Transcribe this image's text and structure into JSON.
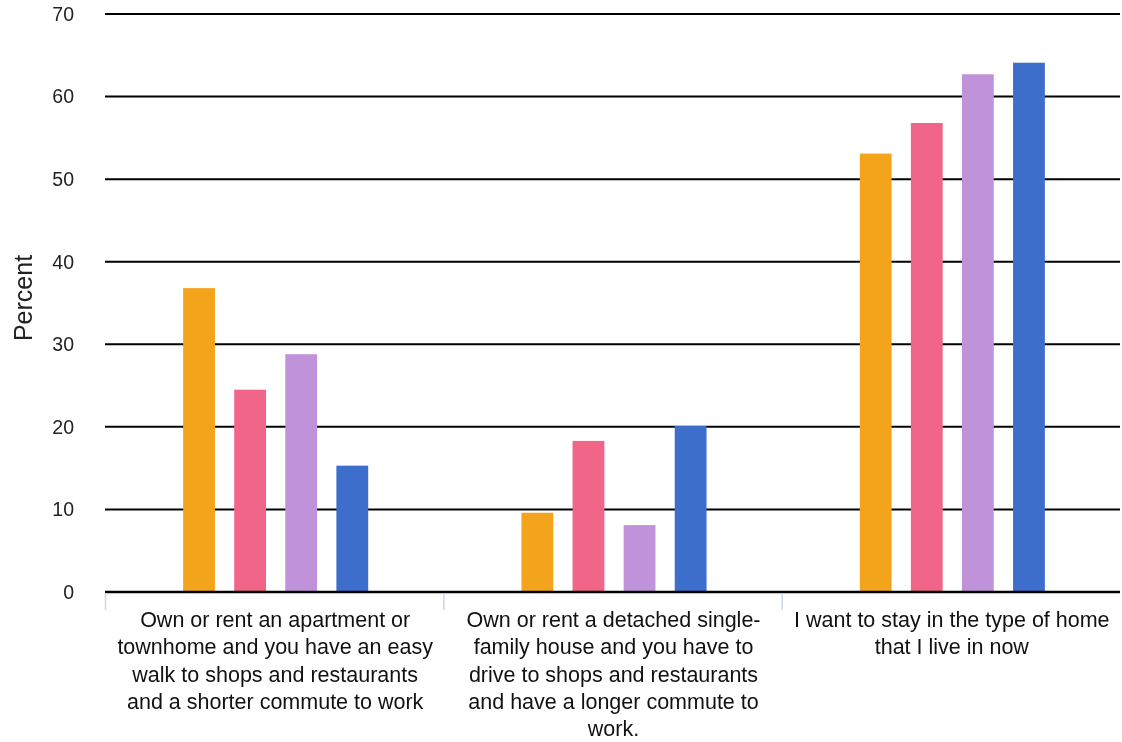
{
  "chart_data": {
    "type": "bar",
    "ylabel": "Percent",
    "categories": [
      "Own or rent an apartment or townhome and you have an easy walk to shops and restaurants and a shorter commute to work",
      "Own or rent a detached single-family house and you have to drive to shops and restaurants and have a longer commute to work.",
      "I want to stay in the type of home that I live in now"
    ],
    "series": [
      {
        "color": "#f4a41a",
        "values": [
          36.8,
          9.6,
          53.1
        ]
      },
      {
        "color": "#f06588",
        "values": [
          24.5,
          18.3,
          56.8
        ]
      },
      {
        "color": "#c092da",
        "values": [
          28.8,
          8.1,
          62.7
        ]
      },
      {
        "color": "#3d6ecc",
        "values": [
          15.3,
          20.1,
          64.1
        ]
      }
    ],
    "ylim": [
      0,
      70
    ],
    "yticks": [
      0,
      10,
      20,
      30,
      40,
      50,
      60,
      70
    ],
    "grid": "y"
  }
}
